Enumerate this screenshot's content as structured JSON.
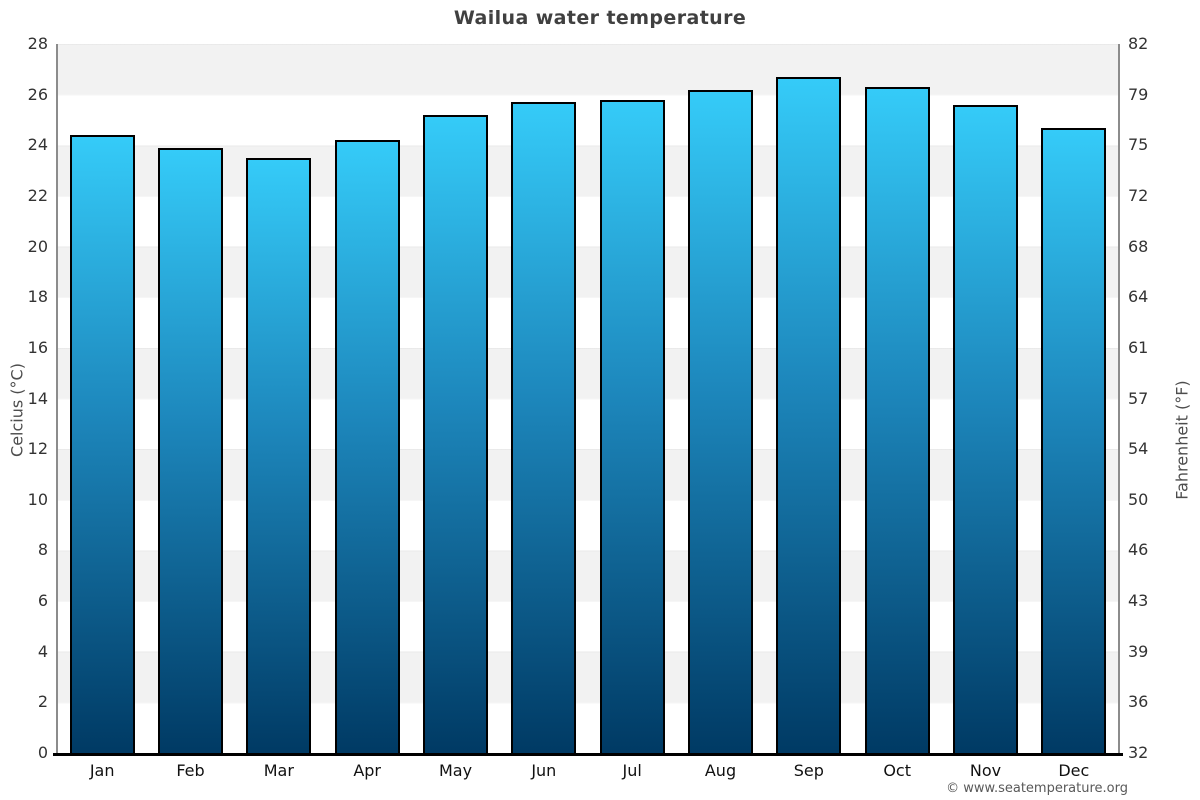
{
  "page": {
    "title": "Wailua water temperature",
    "copyright": "© www.seatemperature.org"
  },
  "chart_data": {
    "type": "bar",
    "title": "Wailua water temperature",
    "categories": [
      "Jan",
      "Feb",
      "Mar",
      "Apr",
      "May",
      "Jun",
      "Jul",
      "Aug",
      "Sep",
      "Oct",
      "Nov",
      "Dec"
    ],
    "series": [
      {
        "name": "Water temperature (°C)",
        "values": [
          24.4,
          23.9,
          23.5,
          24.2,
          25.2,
          25.7,
          25.8,
          26.2,
          26.7,
          26.3,
          25.6,
          24.7
        ]
      }
    ],
    "xlabel": "",
    "ylabel_left": "Celcius (°C)",
    "ylabel_right": "Fahrenheit (°F)",
    "ylim_left": [
      0,
      28
    ],
    "ylim_right": [
      32,
      82
    ],
    "yticks_left": [
      0,
      2,
      4,
      6,
      8,
      10,
      12,
      14,
      16,
      18,
      20,
      22,
      24,
      26,
      28
    ],
    "yticks_right": [
      32,
      36,
      39,
      43,
      46,
      50,
      54,
      57,
      61,
      64,
      68,
      72,
      75,
      79,
      82
    ],
    "grid": "alternating horizontal bands every 2°C",
    "legend_position": "none",
    "colors": {
      "bar_gradient_top": "#35cbf8",
      "bar_gradient_mid": "#1d87bc",
      "bar_gradient_bottom": "#003a64",
      "bar_border": "#000000",
      "band_light": "#f2f2f2",
      "band_white": "#ffffff",
      "title_text": "#404040",
      "tick_text": "#333333",
      "bottom_axis": "#000000",
      "side_spine": "#8c8c8c",
      "copyright_text": "#595959"
    }
  }
}
